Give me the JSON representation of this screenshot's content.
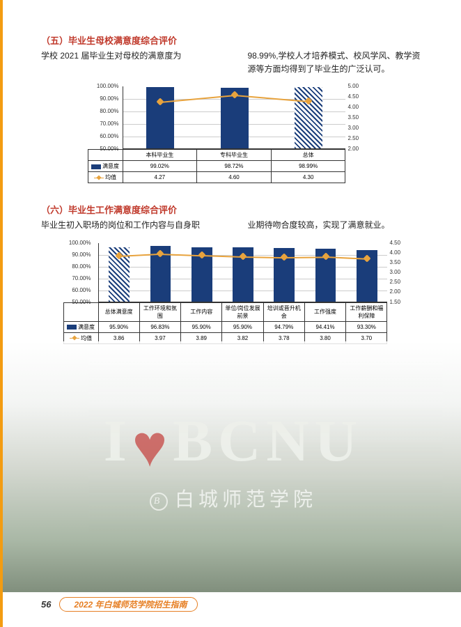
{
  "section5": {
    "title": "（五）毕业生母校满意度综合评价",
    "left": "学校 2021 届毕业生对母校的满意度为",
    "right": "98.99%,学校人才培养模式、校风学风、教学资源等方面均得到了毕业生的广泛认可。"
  },
  "chart1": {
    "yticks_left": [
      "100.00%",
      "90.00%",
      "80.00%",
      "70.00%",
      "60.00%",
      "50.00%"
    ],
    "yticks_right": [
      "5.00",
      "4.50",
      "4.00",
      "3.50",
      "3.00",
      "2.50",
      "2.00"
    ],
    "categories": [
      "本科毕业生",
      "专科毕业生",
      "总体"
    ],
    "bar_values": [
      99.02,
      98.72,
      98.99
    ],
    "bar_pct_range": [
      50,
      100
    ],
    "line_values": [
      4.27,
      4.6,
      4.3
    ],
    "line_range": [
      2.0,
      5.0
    ],
    "row1_label": "满意度",
    "row1": [
      "99.02%",
      "98.72%",
      "98.99%"
    ],
    "row2_label": "均值",
    "row2": [
      "4.27",
      "4.60",
      "4.30"
    ],
    "bar_color": "#1a3d7a",
    "line_color": "#e8a33d"
  },
  "section6": {
    "title": "（六）毕业生工作满意度综合评价",
    "left": "毕业生初入职场的岗位和工作内容与自身职",
    "right": "业期待吻合度较高，实现了满意就业。"
  },
  "chart2": {
    "yticks_left": [
      "100.00%",
      "90.00%",
      "80.00%",
      "70.00%",
      "60.00%",
      "50.00%"
    ],
    "yticks_right": [
      "4.50",
      "4.00",
      "3.50",
      "3.00",
      "2.50",
      "2.00",
      "1.50"
    ],
    "categories": [
      "总体满意度",
      "工作环境和氛围",
      "工作内容",
      "单位/岗位发展前景",
      "培训或晋升机会",
      "工作强度",
      "工作薪酬和福利保障"
    ],
    "bar_values": [
      95.9,
      96.83,
      95.9,
      95.9,
      94.79,
      94.41,
      93.3
    ],
    "bar_pct_range": [
      50,
      100
    ],
    "line_values": [
      3.86,
      3.97,
      3.89,
      3.82,
      3.78,
      3.8,
      3.7
    ],
    "line_range": [
      1.5,
      4.5
    ],
    "row1_label": "满意度",
    "row1": [
      "95.90%",
      "96.83%",
      "95.90%",
      "95.90%",
      "94.79%",
      "94.41%",
      "93.30%"
    ],
    "row2_label": "均值",
    "row2": [
      "3.86",
      "3.97",
      "3.89",
      "3.82",
      "3.78",
      "3.80",
      "3.70"
    ]
  },
  "bcnu": {
    "letters": "BCNU",
    "cn": "白城师范学院"
  },
  "footer": {
    "page": "56",
    "text": "2022 年白城师范学院招生指南"
  }
}
